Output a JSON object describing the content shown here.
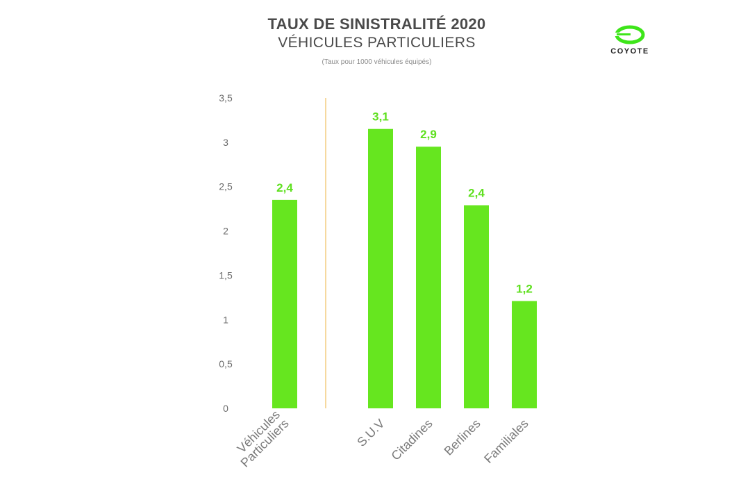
{
  "header": {
    "title": "TAUX DE SINISTRALITÉ 2020",
    "subtitle": "VÉHICULES PARTICULIERS",
    "note": "(Taux pour 1000 véhicules équipés)"
  },
  "logo": {
    "text": "COYOTE",
    "color": "#3ee51a",
    "icon": "coyote-logo"
  },
  "chart_data": {
    "type": "bar",
    "categories": [
      [
        "Véhicules",
        "Particuliers"
      ],
      [
        "S.U.V"
      ],
      [
        "Citadines"
      ],
      [
        "Berlines"
      ],
      [
        "Familiales"
      ]
    ],
    "values": [
      2.4,
      3.1,
      2.9,
      2.4,
      1.2
    ],
    "bar_heights": [
      2.35,
      3.15,
      2.95,
      2.29,
      1.21
    ],
    "value_labels": [
      "2,4",
      "3,1",
      "2,9",
      "2,4",
      "1,2"
    ],
    "y_ticks": [
      0,
      0.5,
      1,
      1.5,
      2,
      2.5,
      3,
      3.5
    ],
    "y_tick_labels": [
      "0",
      "0,5",
      "1",
      "1,5",
      "2",
      "2,5",
      "3",
      "3,5"
    ],
    "ylim": [
      0,
      3.5
    ],
    "grid": false,
    "legend": "none",
    "separator_after_category": 0,
    "colors": {
      "bar": "#66e61f",
      "label": "#5fe01f",
      "separator": "#f0c060",
      "tick": "#6b6b6b"
    }
  }
}
